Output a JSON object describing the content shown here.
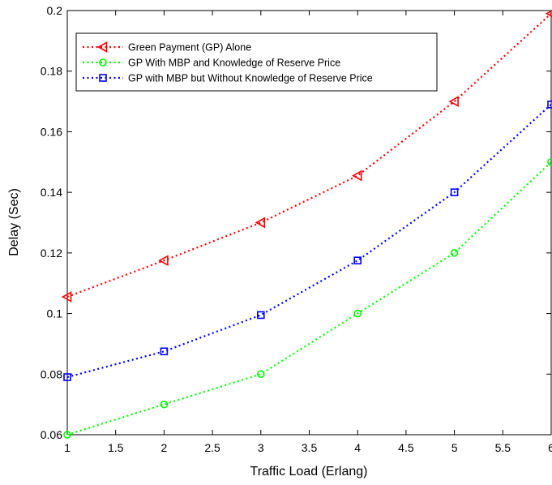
{
  "chart_data": {
    "type": "line",
    "xlabel": "Traffic Load (Erlang)",
    "ylabel": "Delay (Sec)",
    "xlim": [
      1,
      6
    ],
    "ylim": [
      0.06,
      0.2
    ],
    "xticks": [
      1,
      1.5,
      2,
      2.5,
      3,
      3.5,
      4,
      4.5,
      5,
      5.5,
      6
    ],
    "xtick_labels": [
      "1",
      "1.5",
      "2",
      "2.5",
      "3",
      "3.5",
      "4",
      "4.5",
      "5",
      "5.5",
      "6"
    ],
    "yticks": [
      0.06,
      0.08,
      0.1,
      0.12,
      0.14,
      0.16,
      0.18,
      0.2
    ],
    "ytick_labels": [
      "0.06",
      "0.08",
      "0.1",
      "0.12",
      "0.14",
      "0.16",
      "0.18",
      "0.2"
    ],
    "grid": false,
    "legend_position": "top-left",
    "x": [
      1,
      2,
      3,
      4,
      5,
      6
    ],
    "series": [
      {
        "name": "Green Payment (GP) Alone",
        "color": "#ff0000",
        "marker": "triangle-left",
        "values": [
          0.1055,
          0.1175,
          0.13,
          0.1455,
          0.17,
          0.199
        ]
      },
      {
        "name": "GP With MBP and Knowledge of Reserve Price",
        "color": "#00ff00",
        "marker": "circle",
        "values": [
          0.06,
          0.07,
          0.08,
          0.1,
          0.12,
          0.15
        ]
      },
      {
        "name": "GP with MBP but Without Knowledge of Reserve Price",
        "color": "#0000ff",
        "marker": "square",
        "values": [
          0.079,
          0.0875,
          0.0995,
          0.1175,
          0.14,
          0.169
        ]
      }
    ]
  }
}
